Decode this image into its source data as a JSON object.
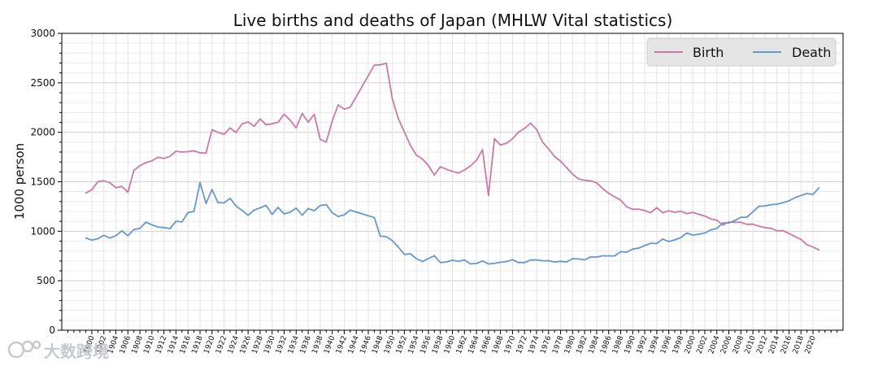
{
  "chart_data": {
    "type": "line",
    "title": "Live births and deaths of Japan (MHLW Vital statistics)",
    "ylabel": "1000 person",
    "xlabel": "",
    "xlim": [
      1895,
      2025
    ],
    "ylim": [
      0,
      3000
    ],
    "yticks": [
      0,
      500,
      1000,
      1500,
      2000,
      2500,
      3000
    ],
    "grid": true,
    "legend_position": "top-right",
    "x": [
      1899,
      1900,
      1901,
      1902,
      1903,
      1904,
      1905,
      1906,
      1907,
      1908,
      1909,
      1910,
      1911,
      1912,
      1913,
      1914,
      1915,
      1916,
      1917,
      1918,
      1919,
      1920,
      1921,
      1922,
      1923,
      1924,
      1925,
      1926,
      1927,
      1928,
      1929,
      1930,
      1931,
      1932,
      1933,
      1934,
      1935,
      1936,
      1937,
      1938,
      1939,
      1940,
      1941,
      1942,
      1943,
      1947,
      1948,
      1949,
      1950,
      1951,
      1952,
      1953,
      1954,
      1955,
      1956,
      1957,
      1958,
      1959,
      1960,
      1961,
      1962,
      1963,
      1964,
      1965,
      1966,
      1967,
      1968,
      1969,
      1970,
      1971,
      1972,
      1973,
      1974,
      1975,
      1976,
      1977,
      1978,
      1979,
      1980,
      1981,
      1982,
      1983,
      1984,
      1985,
      1986,
      1987,
      1988,
      1989,
      1990,
      1991,
      1992,
      1993,
      1994,
      1995,
      1996,
      1997,
      1998,
      1999,
      2000,
      2001,
      2002,
      2003,
      2004,
      2005,
      2006,
      2007,
      2008,
      2009,
      2010,
      2011,
      2012,
      2013,
      2014,
      2015,
      2016,
      2017,
      2018,
      2019,
      2020,
      2021
    ],
    "series": [
      {
        "name": "Birth",
        "color": "#cc79a7",
        "values": [
          1386,
          1420,
          1501,
          1510,
          1490,
          1440,
          1452,
          1395,
          1615,
          1663,
          1694,
          1712,
          1747,
          1737,
          1757,
          1808,
          1800,
          1804,
          1813,
          1792,
          1790,
          2026,
          2000,
          1980,
          2043,
          1998,
          2086,
          2104,
          2061,
          2135,
          2077,
          2085,
          2102,
          2183,
          2122,
          2044,
          2191,
          2102,
          2181,
          1928,
          1902,
          2116,
          2277,
          2234,
          2254,
          2679,
          2682,
          2697,
          2338,
          2138,
          2005,
          1868,
          1770,
          1731,
          1665,
          1567,
          1653,
          1626,
          1606,
          1589,
          1619,
          1660,
          1717,
          1824,
          1361,
          1936,
          1872,
          1890,
          1934,
          2001,
          2039,
          2092,
          2030,
          1901,
          1833,
          1755,
          1709,
          1643,
          1577,
          1529,
          1515,
          1509,
          1490,
          1432,
          1383,
          1347,
          1314,
          1247,
          1222,
          1223,
          1209,
          1188,
          1238,
          1187,
          1207,
          1192,
          1203,
          1178,
          1191,
          1171,
          1154,
          1124,
          1111,
          1063,
          1093,
          1090,
          1091,
          1070,
          1071,
          1051,
          1037,
          1030,
          1004,
          1006,
          977,
          946,
          918,
          865,
          841,
          812
        ]
      },
      {
        "name": "Death",
        "color": "#6699cc",
        "values": [
          932,
          911,
          925,
          959,
          931,
          955,
          1004,
          955,
          1017,
          1030,
          1092,
          1064,
          1043,
          1037,
          1027,
          1101,
          1094,
          1188,
          1200,
          1493,
          1281,
          1422,
          1289,
          1287,
          1333,
          1255,
          1211,
          1161,
          1214,
          1237,
          1262,
          1170,
          1241,
          1175,
          1193,
          1234,
          1162,
          1230,
          1207,
          1260,
          1269,
          1187,
          1150,
          1166,
          1213,
          1138,
          951,
          946,
          905,
          839,
          766,
          773,
          723,
          694,
          725,
          752,
          684,
          690,
          707,
          696,
          710,
          671,
          674,
          700,
          670,
          676,
          686,
          694,
          713,
          684,
          684,
          709,
          711,
          702,
          703,
          690,
          696,
          690,
          723,
          720,
          712,
          740,
          740,
          752,
          751,
          751,
          793,
          789,
          820,
          830,
          856,
          879,
          876,
          922,
          896,
          913,
          936,
          982,
          962,
          970,
          982,
          1014,
          1029,
          1084,
          1084,
          1108,
          1142,
          1142,
          1197,
          1253,
          1256,
          1268,
          1273,
          1290,
          1307,
          1340,
          1362,
          1381,
          1372,
          1440
        ]
      }
    ]
  },
  "watermark": {
    "text": "大数跨境"
  }
}
